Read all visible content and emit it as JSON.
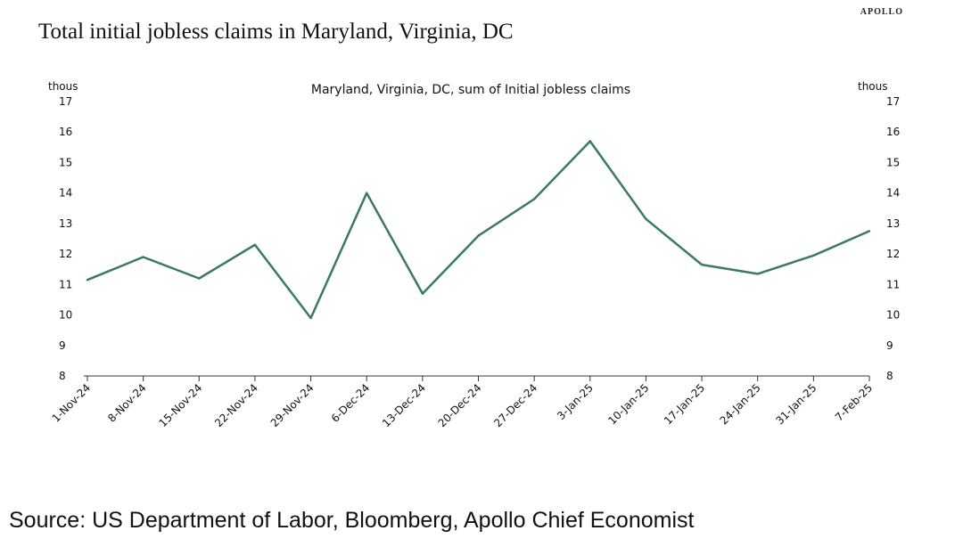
{
  "brand": "APOLLO",
  "title": "Total initial jobless claims in Maryland, Virginia, DC",
  "source": "Source: US Department of Labor, Bloomberg, Apollo Chief Economist",
  "colors": {
    "line": "#3a7a63",
    "axis": "#333333"
  },
  "chart_data": {
    "type": "line",
    "subtitle": "Maryland, Virginia, DC, sum of Initial jobless claims",
    "ylabel_left": "thous",
    "ylabel_right": "thous",
    "ylim": [
      8,
      17
    ],
    "yticks": [
      8,
      9,
      10,
      11,
      12,
      13,
      14,
      15,
      16,
      17
    ],
    "grid": false,
    "categories": [
      "1-Nov-24",
      "8-Nov-24",
      "15-Nov-24",
      "22-Nov-24",
      "29-Nov-24",
      "6-Dec-24",
      "13-Dec-24",
      "20-Dec-24",
      "27-Dec-24",
      "3-Jan-25",
      "10-Jan-25",
      "17-Jan-25",
      "24-Jan-25",
      "31-Jan-25",
      "7-Feb-25"
    ],
    "series": [
      {
        "values": [
          11.15,
          11.9,
          11.2,
          12.3,
          9.9,
          14.0,
          10.7,
          12.6,
          13.8,
          15.7,
          13.15,
          11.65,
          11.35,
          11.95,
          12.75
        ]
      }
    ]
  }
}
